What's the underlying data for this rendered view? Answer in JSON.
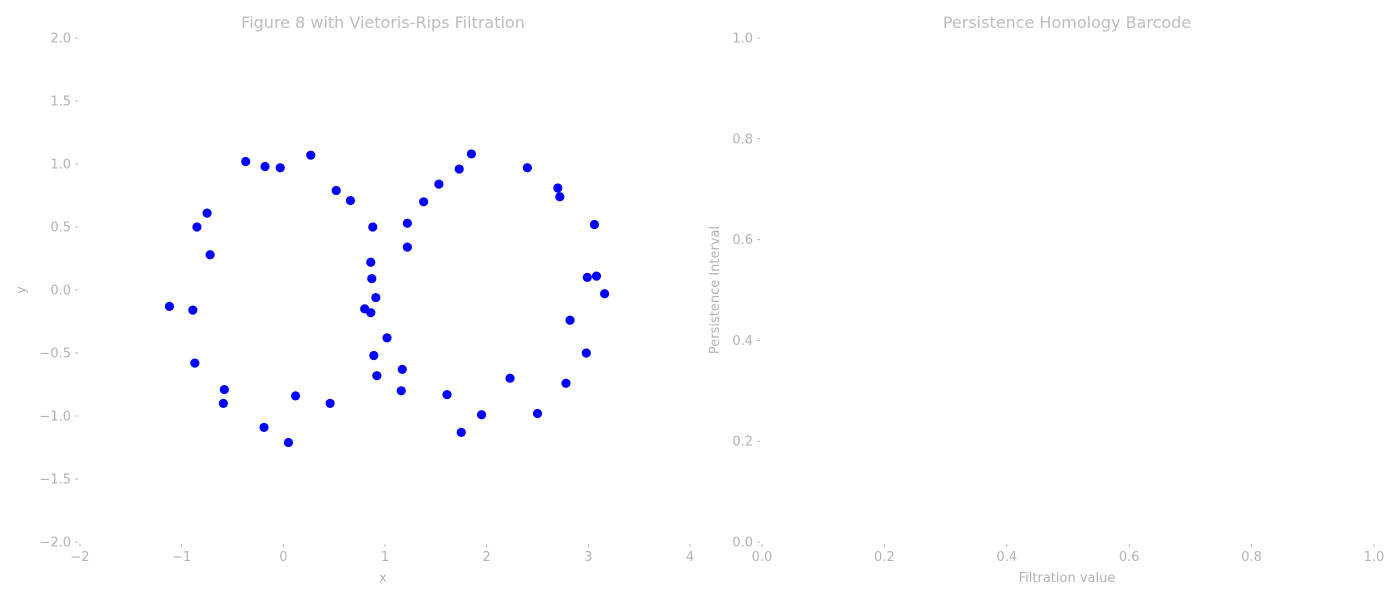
{
  "chart_data": [
    {
      "type": "scatter",
      "title": "Figure 8 with Vietoris-Rips Filtration",
      "xlabel": "x",
      "ylabel": "y",
      "xlim": [
        -2,
        4
      ],
      "ylim": [
        -2,
        2
      ],
      "xticks": [
        "−2",
        "−1",
        "0",
        "1",
        "2",
        "3",
        "4"
      ],
      "yticks": [
        "−2.0",
        "−1.5",
        "−1.0",
        "−0.5",
        "0.0",
        "0.5",
        "1.0",
        "1.5",
        "2.0"
      ],
      "grid": false,
      "marker_color": "#0000ff",
      "points": [
        [
          -0.37,
          1.02
        ],
        [
          -0.18,
          0.98
        ],
        [
          -0.03,
          0.97
        ],
        [
          0.27,
          1.07
        ],
        [
          0.52,
          0.79
        ],
        [
          0.66,
          0.71
        ],
        [
          -0.75,
          0.61
        ],
        [
          -0.85,
          0.5
        ],
        [
          -0.72,
          0.28
        ],
        [
          -1.12,
          -0.13
        ],
        [
          -0.89,
          -0.16
        ],
        [
          -0.87,
          -0.58
        ],
        [
          -0.58,
          -0.79
        ],
        [
          -0.59,
          -0.9
        ],
        [
          -0.19,
          -1.09
        ],
        [
          0.05,
          -1.21
        ],
        [
          0.12,
          -0.84
        ],
        [
          0.46,
          -0.9
        ],
        [
          0.88,
          0.5
        ],
        [
          0.86,
          0.22
        ],
        [
          0.87,
          0.09
        ],
        [
          0.91,
          -0.06
        ],
        [
          0.8,
          -0.15
        ],
        [
          0.86,
          -0.18
        ],
        [
          1.02,
          -0.38
        ],
        [
          0.89,
          -0.52
        ],
        [
          0.92,
          -0.68
        ],
        [
          1.17,
          -0.63
        ],
        [
          1.16,
          -0.8
        ],
        [
          1.22,
          0.53
        ],
        [
          1.22,
          0.34
        ],
        [
          1.38,
          0.7
        ],
        [
          1.53,
          0.84
        ],
        [
          1.73,
          0.96
        ],
        [
          1.85,
          1.08
        ],
        [
          2.4,
          0.97
        ],
        [
          2.7,
          0.81
        ],
        [
          2.72,
          0.74
        ],
        [
          3.06,
          0.52
        ],
        [
          2.99,
          0.1
        ],
        [
          3.08,
          0.11
        ],
        [
          3.16,
          -0.03
        ],
        [
          2.82,
          -0.24
        ],
        [
          2.98,
          -0.5
        ],
        [
          2.78,
          -0.74
        ],
        [
          2.5,
          -0.98
        ],
        [
          2.23,
          -0.7
        ],
        [
          1.95,
          -0.99
        ],
        [
          1.61,
          -0.83
        ],
        [
          1.75,
          -1.13
        ]
      ]
    },
    {
      "type": "bar",
      "title": "Persistence Homology Barcode",
      "xlabel": "Filtration value",
      "ylabel": "Persistence Interval",
      "xlim": [
        0,
        1
      ],
      "ylim": [
        0,
        1
      ],
      "xticks": [
        "0.0",
        "0.2",
        "0.4",
        "0.6",
        "0.8",
        "1.0"
      ],
      "yticks": [
        "0.0",
        "0.2",
        "0.4",
        "0.6",
        "0.8",
        "1.0"
      ],
      "grid": false,
      "bars": []
    }
  ]
}
